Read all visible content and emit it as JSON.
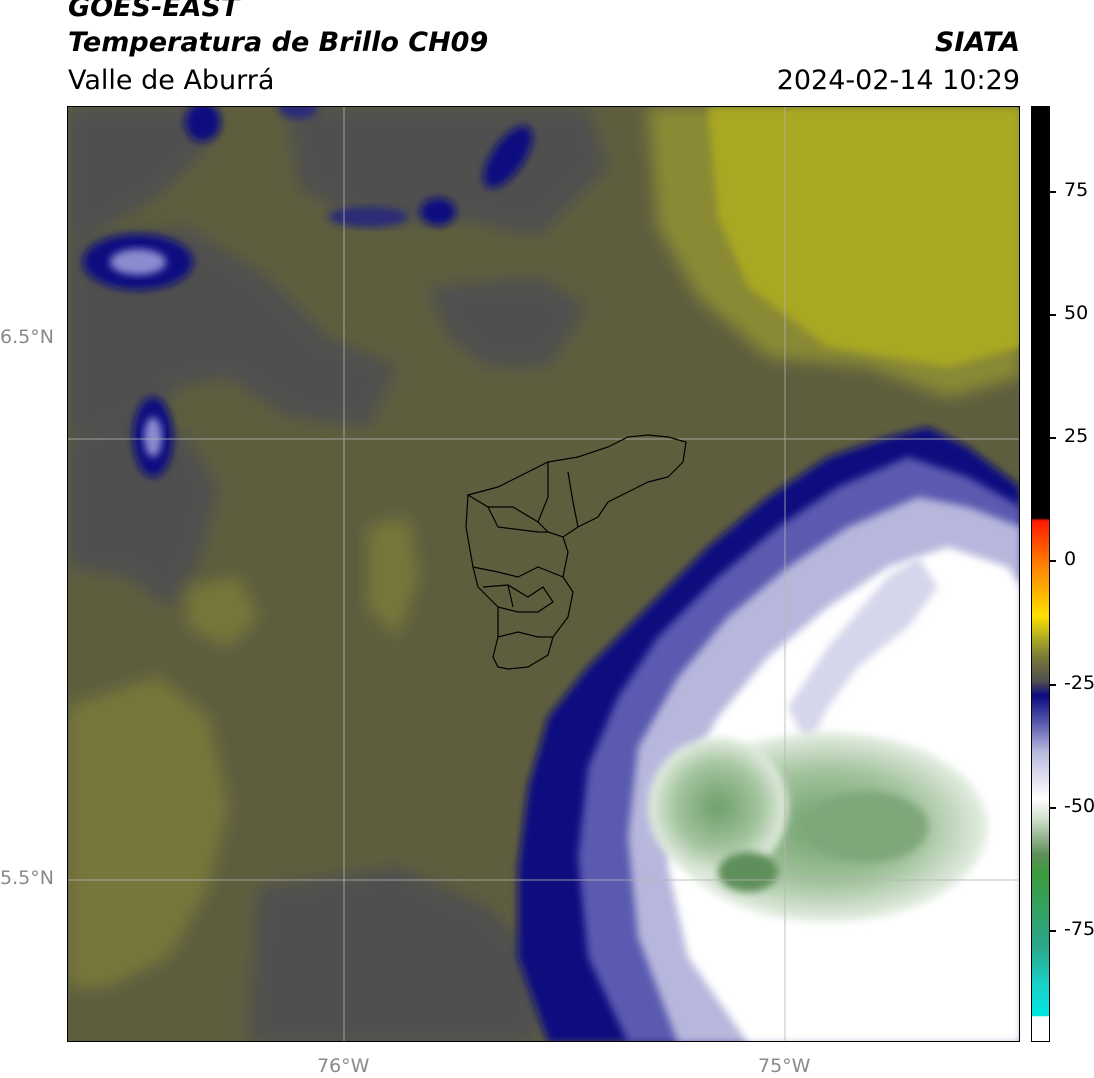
{
  "header": {
    "title_line1": "GOES-EAST",
    "title_line2": "Temperatura de Brillo CH09",
    "subtitle": "Valle de Aburrá",
    "organization": "SIATA",
    "datetime": "2024-02-14 10:29"
  },
  "map": {
    "lat_labels": [
      "6.5°N",
      "5.5°N"
    ],
    "lon_labels": [
      "76°W",
      "75°W"
    ],
    "region_outline": "Valle de Aburrá municipalities",
    "colors": {
      "olive_dark": "#5e5e3e",
      "olive": "#77773a",
      "olive_light": "#8a8a36",
      "yellow": "#a9a823",
      "grey": "#4f4f4f",
      "navy": "#0a0a80",
      "lavender": "#b7b7dd",
      "white": "#ffffff",
      "green": "#8fb58a"
    }
  },
  "colorbar": {
    "tick_labels": [
      "75",
      "50",
      "25",
      "0",
      "-25",
      "-50",
      "-75"
    ],
    "units_note": ""
  }
}
